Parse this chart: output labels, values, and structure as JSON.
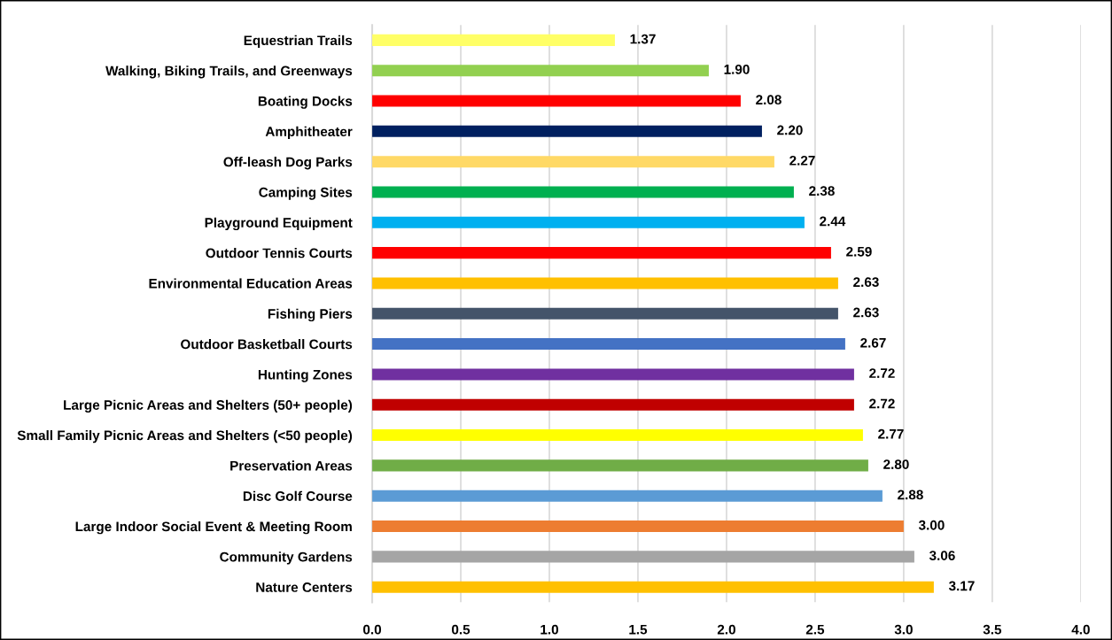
{
  "chart_data": {
    "type": "bar",
    "orientation": "horizontal",
    "categories": [
      "Equestrian Trails",
      "Walking, Biking Trails, and Greenways",
      "Boating Docks",
      "Amphitheater",
      "Off-leash Dog Parks",
      "Camping Sites",
      "Playground Equipment",
      "Outdoor Tennis Courts",
      "Environmental Education Areas",
      "Fishing Piers",
      "Outdoor Basketball Courts",
      "Hunting Zones",
      "Large Picnic Areas and Shelters (50+ people)",
      "Small Family Picnic Areas and Shelters (<50 people)",
      "Preservation Areas",
      "Disc Golf Course",
      "Large Indoor Social Event & Meeting Room",
      "Community Gardens",
      "Nature Centers"
    ],
    "values": [
      1.37,
      1.9,
      2.08,
      2.2,
      2.27,
      2.38,
      2.44,
      2.59,
      2.63,
      2.63,
      2.67,
      2.72,
      2.72,
      2.77,
      2.8,
      2.88,
      3.0,
      3.06,
      3.17
    ],
    "colors": [
      "#ffff66",
      "#92d050",
      "#ff0000",
      "#002060",
      "#ffd966",
      "#00b050",
      "#00b0f0",
      "#ff0000",
      "#ffc000",
      "#44546a",
      "#4472c4",
      "#7030a0",
      "#c00000",
      "#ffff00",
      "#70ad47",
      "#5b9bd5",
      "#ed7d31",
      "#a5a5a5",
      "#ffc000"
    ],
    "value_labels": [
      "1.37",
      "1.90",
      "2.08",
      "2.20",
      "2.27",
      "2.38",
      "2.44",
      "2.59",
      "2.63",
      "2.63",
      "2.67",
      "2.72",
      "2.72",
      "2.77",
      "2.80",
      "2.88",
      "3.00",
      "3.06",
      "3.17"
    ],
    "xlim": [
      0,
      4.0
    ],
    "xticks": [
      {
        "value": 0,
        "label": "0.0"
      },
      {
        "value": 0.5,
        "label": "0.5"
      },
      {
        "value": 1.0,
        "label": "1.0"
      },
      {
        "value": 1.5,
        "label": "1.5"
      },
      {
        "value": 2.0,
        "label": "2.0"
      },
      {
        "value": 2.5,
        "label": "2.5"
      },
      {
        "value": 3.0,
        "label": "3.0"
      },
      {
        "value": 3.5,
        "label": "3.5"
      },
      {
        "value": 4.0,
        "label": "4.0"
      }
    ],
    "grid": "x",
    "legend": false
  }
}
